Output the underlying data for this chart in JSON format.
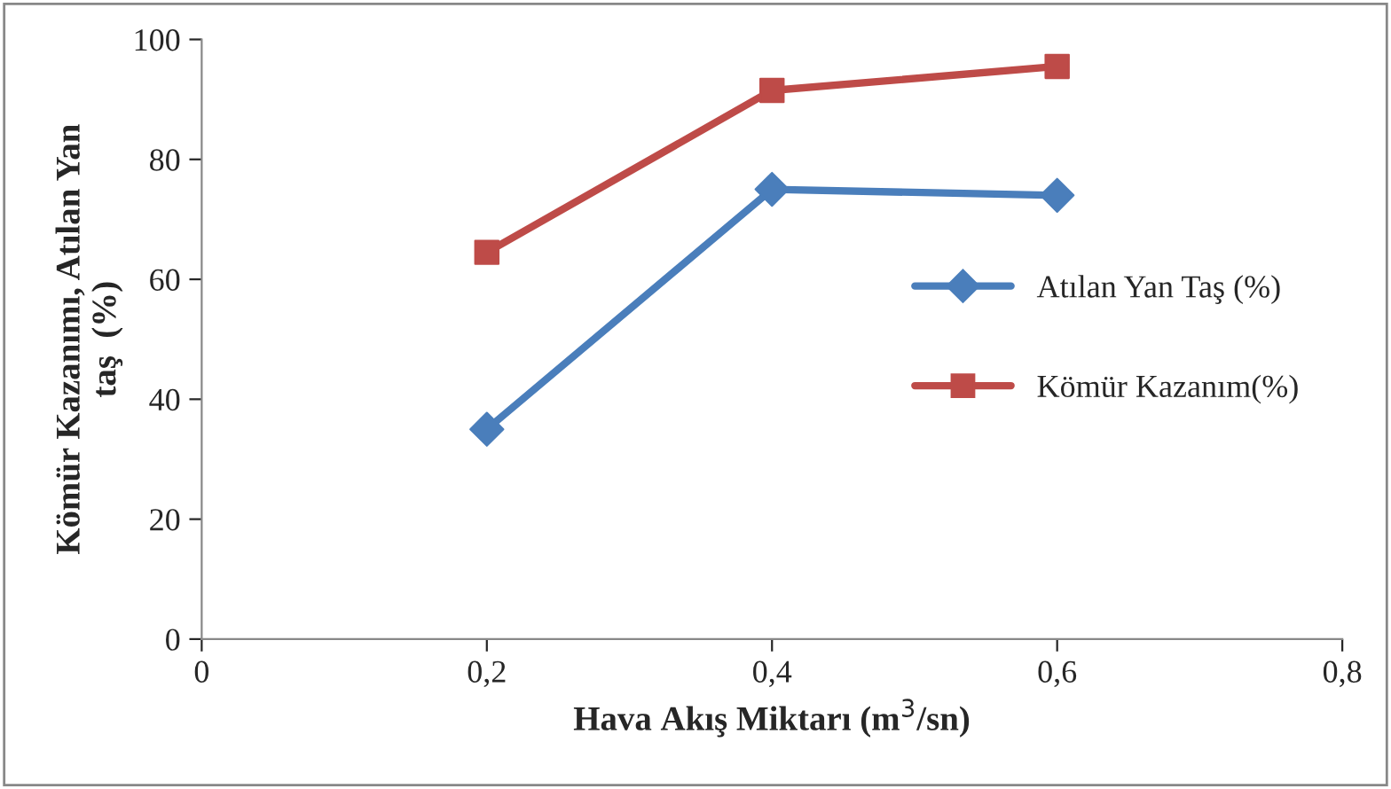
{
  "chart_data": {
    "type": "line",
    "xlabel": "Hava Akış Miktarı (m$^{3}$/sn)",
    "ylabel": "Kömür Kazanımı, Atılan Yan\ntaş  (%)",
    "x": [
      0.2,
      0.4,
      0.6
    ],
    "series": [
      {
        "name": "Atılan Yan Taş (%)",
        "color": "#4a7ebb",
        "marker": "diamond",
        "values": [
          35,
          75,
          74
        ]
      },
      {
        "name": "Kömür Kazanım(%)",
        "color": "#be4b48",
        "marker": "square",
        "values": [
          64.5,
          91.5,
          95.5
        ]
      }
    ],
    "xlim": [
      0,
      0.8
    ],
    "xticks": [
      {
        "value": 0,
        "label": "0"
      },
      {
        "value": 0.2,
        "label": "0,2"
      },
      {
        "value": 0.4,
        "label": "0,4"
      },
      {
        "value": 0.6,
        "label": "0,6"
      },
      {
        "value": 0.8,
        "label": "0,8"
      }
    ],
    "ylim": [
      0,
      100
    ],
    "yticks": [
      0,
      20,
      40,
      60,
      80,
      100
    ],
    "grid": false,
    "legend": "right",
    "line_style": "solid"
  }
}
